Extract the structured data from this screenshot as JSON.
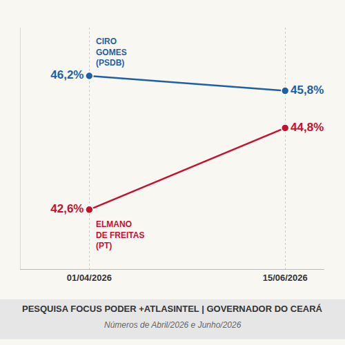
{
  "chart_data": {
    "type": "line",
    "title": "PESQUISA FOCUS PODER +ATLASINTEL | GOVERNADOR DO CEARÁ",
    "subtitle": "Números de Abril/2026 e Junho/2026",
    "categories": [
      "01/04/2026",
      "15/06/2026"
    ],
    "series": [
      {
        "name": "CIRO GOMES (PSDB)",
        "color": "#1f5fa8",
        "values": [
          46.2,
          45.8
        ],
        "value_labels": [
          "46,2%",
          "45,8%"
        ]
      },
      {
        "name": "ELMANO DE FREITAS (PT)",
        "color": "#c8102e",
        "values": [
          42.6,
          44.8
        ],
        "value_labels": [
          "42,6%",
          "44,8%"
        ]
      }
    ],
    "ylim": [
      41,
      47.5
    ],
    "yticks": [],
    "tick_labels": "x",
    "data_labels": true,
    "grid": true,
    "marker": "circle"
  }
}
